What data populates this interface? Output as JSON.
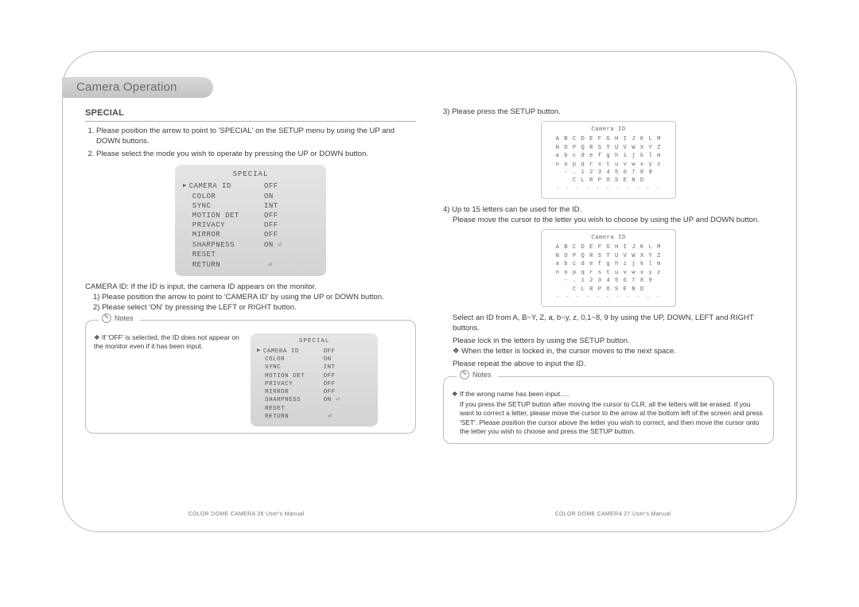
{
  "title": "Camera Operation",
  "left": {
    "section": "SPECIAL",
    "step1": "Please position the arrow to point to 'SPECIAL' on the SETUP menu by using the UP and DOWN buttons.",
    "step2": "Please select the mode you wish to operate by pressing the UP or DOWN button.",
    "osd1": {
      "title": "SPECIAL",
      "rows": [
        {
          "label": "CAMERA ID",
          "value": "OFF",
          "arrow": true
        },
        {
          "label": "COLOR",
          "value": "ON"
        },
        {
          "label": "SYNC",
          "value": "INT"
        },
        {
          "label": "MOTION DET",
          "value": "OFF"
        },
        {
          "label": "PRIVACY",
          "value": "OFF"
        },
        {
          "label": "MIRROR",
          "value": "OFF"
        },
        {
          "label": "SHARPNESS",
          "value": "ON",
          "enter": true
        },
        {
          "label": "RESET",
          "value": ""
        },
        {
          "label": "RETURN",
          "value": "",
          "enter": true
        }
      ]
    },
    "camera_id_lead": "CAMERA ID: If the ID is input, the camera ID appears on the monitor.",
    "camera_id_1": "1) Please position the arrow to point to 'CAMERA ID' by using the UP or DOWN button.",
    "camera_id_2": "2) Please select 'ON' by pressing the LEFT or RIGHT button.",
    "notes_label": "Notes",
    "note_text": "❖ If 'OFF' is selected, the ID does not appear on the monitor even if it has been input.",
    "osd2": {
      "title": "SPECIAL",
      "rows": [
        {
          "label": "CAMERA ID",
          "value": "OFF",
          "arrow": true
        },
        {
          "label": "COLOR",
          "value": "ON"
        },
        {
          "label": "SYNC",
          "value": "INT"
        },
        {
          "label": "MOTION DET",
          "value": "OFF"
        },
        {
          "label": "PRIVACY",
          "value": "OFF"
        },
        {
          "label": "MIRROR",
          "value": "OFF"
        },
        {
          "label": "SHARPNESS",
          "value": "ON",
          "enter": true
        },
        {
          "label": "RESET",
          "value": ""
        },
        {
          "label": "RETURN",
          "value": "",
          "enter": true
        }
      ]
    }
  },
  "right": {
    "step3": "3) Please press the SETUP button.",
    "idbox": {
      "title": "Camera ID",
      "lines": [
        "A B C D E F G H I J K L M",
        "N O P Q R S T U V W X Y Z",
        "a b c d e f g h i j k l m",
        "n o p q r s t u v w x y z",
        "- .   1 2 3 4 5 6 7 8 9",
        "C L R   P O S   E N D"
      ],
      "dashes": "- - - - - - - - - - -"
    },
    "step4a": "4) Up to 15 letters can be used for the ID.",
    "step4b": "Please move the cursor to the letter you wish to choose by using the UP and DOWN button.",
    "select_line": "Select an ID from A, B~Y, Z, a, b~y, z, 0,1~8, 9 by using the UP, DOWN, LEFT and RIGHT buttons.",
    "lock_line": "Please lock in the letters by using the SETUP button.",
    "when_line": "❖ When the letter is locked in, the cursor moves to the next space.",
    "repeat_line": "Please repeat the above to input the ID.",
    "notes_label": "Notes",
    "note_head": "❖ If the wrong name has been input.....",
    "note_body": "If you press the SETUP button after moving the cursor to CLR, all the letters will be erased.   If you want to correct a letter, please move the cursor to the arrow at the bottom left of the screen and press 'SET'. Please position the cursor above the letter you wish to correct, and then move the cursor onto the letter you wish to choose and press the SETUP button."
  },
  "footer": {
    "left": "COLOR DOME CAMERA 26   User's Manual",
    "right": "COLOR DOME CAMERA 27   User's Manual"
  }
}
